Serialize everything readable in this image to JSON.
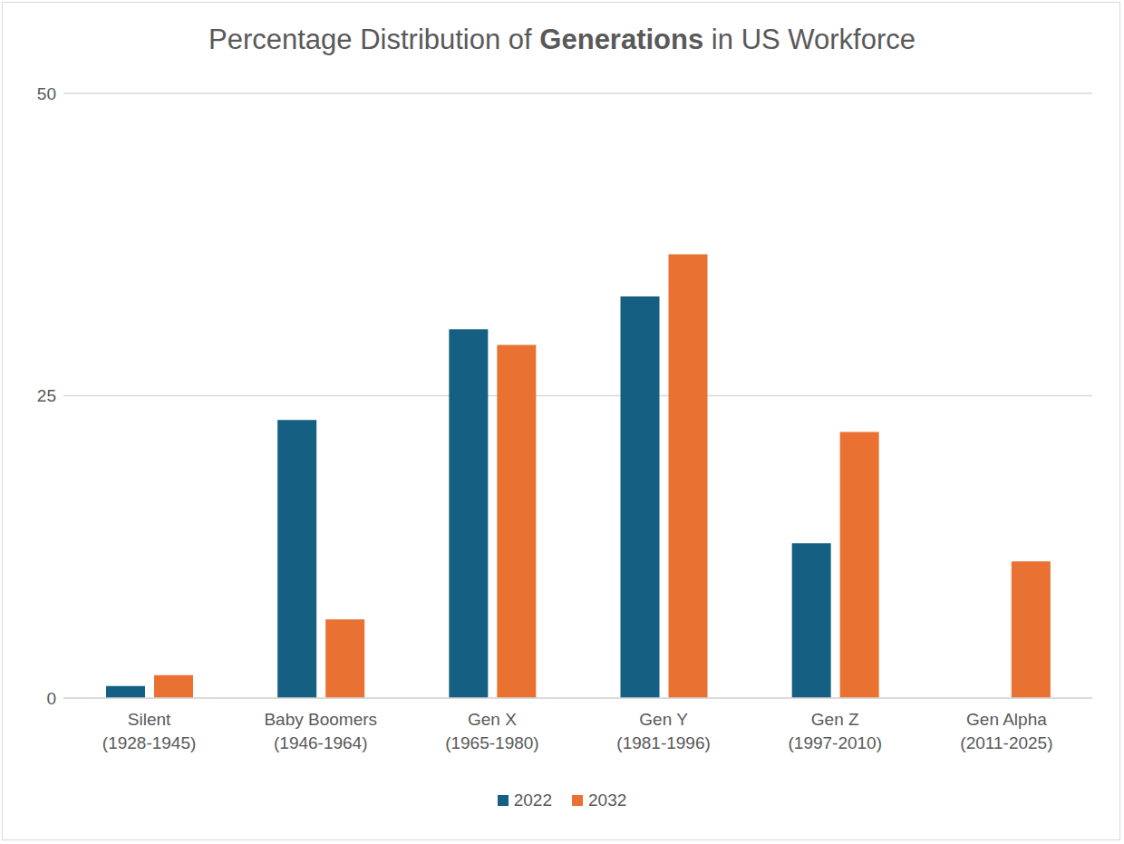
{
  "chart_data": {
    "type": "bar",
    "title": "Percentage Distribution of Generations in US Workforce",
    "categories": [
      "Silent (1928-1945)",
      "Baby Boomers (1946-1964)",
      "Gen X (1965-1980)",
      "Gen Y (1981-1996)",
      "Gen Z (1997-2010)",
      "Gen Alpha (2011-2025)"
    ],
    "series": [
      {
        "name": "2022",
        "color": "#156082",
        "values": [
          1.0,
          23.0,
          30.5,
          33.2,
          12.8,
          null
        ]
      },
      {
        "name": "2032",
        "color": "#e97132",
        "values": [
          1.9,
          6.5,
          29.2,
          36.7,
          22.0,
          11.3
        ]
      }
    ],
    "ylim": [
      0,
      50
    ],
    "yticks": [
      0,
      25,
      50
    ],
    "grid": true,
    "legend": "bottom"
  }
}
